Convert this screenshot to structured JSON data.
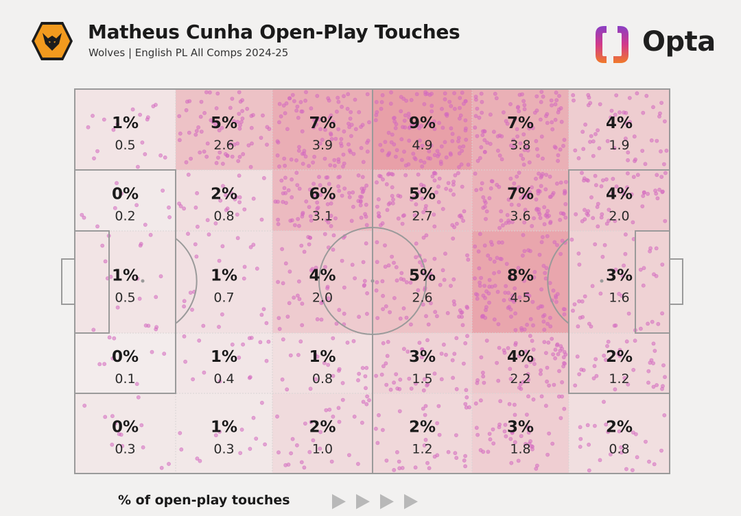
{
  "header": {
    "title": "Matheus Cunha Open-Play Touches",
    "subtitle": "Wolves | English PL All Comps 2024-25",
    "brand": "Opta"
  },
  "colors": {
    "background": "#f2f1f0",
    "pitch_lines": "#9a9a9a",
    "touch_dot": "#d46ac0",
    "heat_low": "#f3eeee",
    "heat_high": "#e8a0a8",
    "opta_purple": "#7b3fbf",
    "opta_orange": "#f07a2a",
    "badge_orange": "#f29a1e"
  },
  "chart_data": {
    "type": "heatmap",
    "title": "Matheus Cunha Open-Play Touches",
    "subtitle": "Wolves | English PL All Comps 2024-25",
    "legend_label": "% of open-play touches",
    "columns": 6,
    "rows": 5,
    "row_labels": [],
    "column_labels": [],
    "cells": [
      [
        {
          "pct": "1%",
          "val": "0.5"
        },
        {
          "pct": "5%",
          "val": "2.6"
        },
        {
          "pct": "7%",
          "val": "3.9"
        },
        {
          "pct": "9%",
          "val": "4.9"
        },
        {
          "pct": "7%",
          "val": "3.8"
        },
        {
          "pct": "4%",
          "val": "1.9"
        }
      ],
      [
        {
          "pct": "0%",
          "val": "0.2"
        },
        {
          "pct": "2%",
          "val": "0.8"
        },
        {
          "pct": "6%",
          "val": "3.1"
        },
        {
          "pct": "5%",
          "val": "2.7"
        },
        {
          "pct": "7%",
          "val": "3.6"
        },
        {
          "pct": "4%",
          "val": "2.0"
        }
      ],
      [
        {
          "pct": "1%",
          "val": "0.5"
        },
        {
          "pct": "1%",
          "val": "0.7"
        },
        {
          "pct": "4%",
          "val": "2.0"
        },
        {
          "pct": "5%",
          "val": "2.6"
        },
        {
          "pct": "8%",
          "val": "4.5"
        },
        {
          "pct": "3%",
          "val": "1.6"
        }
      ],
      [
        {
          "pct": "0%",
          "val": "0.1"
        },
        {
          "pct": "1%",
          "val": "0.4"
        },
        {
          "pct": "1%",
          "val": "0.8"
        },
        {
          "pct": "3%",
          "val": "1.5"
        },
        {
          "pct": "4%",
          "val": "2.2"
        },
        {
          "pct": "2%",
          "val": "1.2"
        }
      ],
      [
        {
          "pct": "0%",
          "val": "0.3"
        },
        {
          "pct": "1%",
          "val": "0.3"
        },
        {
          "pct": "2%",
          "val": "1.0"
        },
        {
          "pct": "2%",
          "val": "1.2"
        },
        {
          "pct": "3%",
          "val": "1.8"
        },
        {
          "pct": "2%",
          "val": "0.8"
        }
      ]
    ]
  }
}
